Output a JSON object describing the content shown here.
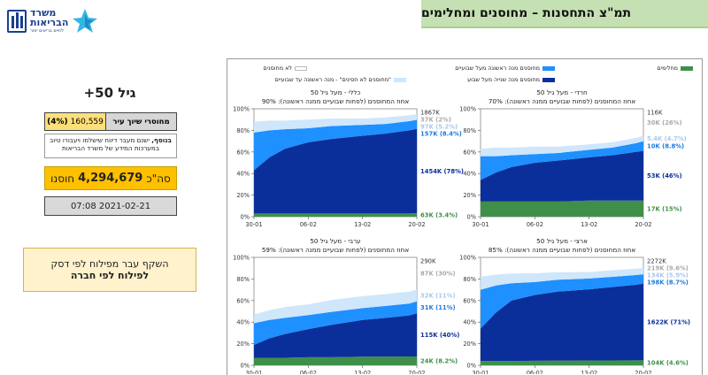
{
  "header": {
    "title": "תמ\"צ התחסנות – מחוסנים ומחלימים",
    "logo": {
      "line1": "משרד",
      "line2": "הבריאות",
      "line3": "לחיים בריאים יותר"
    }
  },
  "info": {
    "age_group": "גיל 50+",
    "residents_label": "מחוסרי שיוך עיר",
    "residents_value": "160,559",
    "residents_pct": "(4%)",
    "note_bold": "בנוסף,",
    "note_text": "ישנם מעבר דיווח שישלמו ויעבורו טיוב במערכות המידע של משרד הבריאות",
    "total_prefix": "סה\"כ",
    "total_value": "4,294,679",
    "total_suffix": "חוסנו",
    "date": "07:08 2021-02-21",
    "shift_line1": "השקף עבר מפילוח לפי דסק",
    "shift_line2": "לפילוח לפי חברה"
  },
  "legend": [
    {
      "label": "מחלימים",
      "color": "#3f8f4a"
    },
    {
      "label": "מחוסנים מנה ראשונה מעל שבועיים",
      "color": "#1e90ff"
    },
    {
      "label": "לא מחוסנים",
      "color": "#ffffff"
    },
    {
      "label": "מחוסנים מנה שנייה מעל שבוע",
      "color": "#0b2f9a"
    },
    {
      "label": "\"מחוסנים לא חסינים\" - מנה ראשונה עד שבועיים",
      "color": "#cfe6fb"
    }
  ],
  "colors": {
    "recovered": "#3f8f4a",
    "second_dose": "#0b2f9a",
    "first_dose": "#1e90ff",
    "not_immune": "#cfe6fb"
  },
  "chart_data": [
    {
      "type": "area",
      "title": "חרדי - מעל גיל 50",
      "subtitle": "אחוז המחוסנים (לפחות שבועיים ממנה ראשונה): 70%",
      "x_ticks": [
        "30-01",
        "06-02",
        "13-02",
        "20-02"
      ],
      "y_ticks": [
        "0%",
        "20%",
        "40%",
        "60%",
        "80%",
        "100%"
      ],
      "ylim": [
        0,
        100
      ],
      "x": [
        0,
        2,
        4,
        7,
        10,
        14,
        17,
        20,
        21
      ],
      "series": [
        {
          "name": "מחלימים",
          "values": [
            14,
            14,
            14,
            14,
            14,
            15,
            15,
            15,
            15
          ]
        },
        {
          "name": "מחוסנים מנה שנייה מעל שבוע",
          "values": [
            20,
            27,
            32,
            36,
            38,
            40,
            42,
            45,
            46
          ]
        },
        {
          "name": "מחוסנים מנה ראשונה מעל שבועיים",
          "values": [
            22,
            15,
            11,
            8,
            7,
            7,
            7,
            8,
            9
          ]
        },
        {
          "name": "\"מחוסנים לא חסינים\" - מנה ראשונה עד שבועיים",
          "values": [
            7,
            8,
            7,
            7,
            6,
            5,
            5,
            5,
            5
          ]
        }
      ],
      "right_labels": [
        {
          "text": "116K",
          "kind": "total"
        },
        {
          "text": "30K (26%)",
          "kind": "unvacc"
        },
        {
          "text": "5.4K (4.7%)",
          "kind": "notimmune"
        },
        {
          "text": "10K (8.8%)",
          "kind": "first"
        },
        {
          "text": "53K (46%)",
          "kind": "second"
        },
        {
          "text": "17K (15%)",
          "kind": "recovered"
        }
      ]
    },
    {
      "type": "area",
      "title": "כללי - מעל גיל 50",
      "subtitle": "אחוז המחוסנים (לפחות שבועיים ממנה ראשונה): 90%",
      "x_ticks": [
        "30-01",
        "06-02",
        "13-02",
        "20-02"
      ],
      "y_ticks": [
        "0%",
        "20%",
        "40%",
        "60%",
        "80%",
        "100%"
      ],
      "ylim": [
        0,
        100
      ],
      "x": [
        0,
        2,
        4,
        7,
        10,
        14,
        17,
        20,
        21
      ],
      "series": [
        {
          "name": "מחלימים",
          "values": [
            3,
            3,
            3,
            3,
            3,
            3,
            3,
            3,
            3.4
          ]
        },
        {
          "name": "מחוסנים מנה שנייה מעל שבוע",
          "values": [
            40,
            52,
            60,
            66,
            69,
            72,
            74,
            77,
            78
          ]
        },
        {
          "name": "מחוסנים מנה ראשונה מעל שבועיים",
          "values": [
            35,
            25,
            18,
            13,
            12,
            10,
            9,
            8.5,
            8.4
          ]
        },
        {
          "name": "\"מחוסנים לא חסינים\" - מנה ראשונה עד שבועיים",
          "values": [
            10,
            9,
            8,
            8,
            7,
            6,
            6,
            5.5,
            5.2
          ]
        }
      ],
      "right_labels": [
        {
          "text": "1867K",
          "kind": "total"
        },
        {
          "text": "37K (2%)",
          "kind": "unvacc"
        },
        {
          "text": "97K (5.2%)",
          "kind": "notimmune"
        },
        {
          "text": "157K (8.4%)",
          "kind": "first"
        },
        {
          "text": "1454K (78%)",
          "kind": "second"
        },
        {
          "text": "63K (3.4%)",
          "kind": "recovered"
        }
      ]
    },
    {
      "type": "area",
      "title": "ארצי - מעל גיל 50",
      "subtitle": "אחוז המחוסנים (לפחות שבועיים ממנה ראשונה): 85%",
      "x_ticks": [
        "30-01",
        "06-02",
        "13-02",
        "20-02"
      ],
      "y_ticks": [
        "0%",
        "20%",
        "40%",
        "60%",
        "80%",
        "100%"
      ],
      "ylim": [
        0,
        100
      ],
      "x": [
        0,
        2,
        4,
        7,
        10,
        14,
        17,
        20,
        21
      ],
      "series": [
        {
          "name": "מחלימים",
          "values": [
            4,
            4,
            4,
            4.2,
            4.3,
            4.4,
            4.5,
            4.6,
            4.6
          ]
        },
        {
          "name": "מחוסנים מנה שנייה מעל שבוע",
          "values": [
            30,
            45,
            56,
            61,
            64,
            66,
            68,
            70,
            71
          ]
        },
        {
          "name": "מחוסנים מנה ראשונה מעל שבועיים",
          "values": [
            36,
            25,
            16,
            12,
            11,
            10,
            9.5,
            9,
            8.7
          ]
        },
        {
          "name": "\"מחוסנים לא חסינים\" - מנה ראשונה עד שבועיים",
          "values": [
            12,
            10,
            9,
            8,
            7,
            6,
            6,
            6,
            5.9
          ]
        }
      ],
      "right_labels": [
        {
          "text": "2272K",
          "kind": "total"
        },
        {
          "text": "219K (9.6%)",
          "kind": "unvacc"
        },
        {
          "text": "134K (5.9%)",
          "kind": "notimmune"
        },
        {
          "text": "198K (8.7%)",
          "kind": "first"
        },
        {
          "text": "1622K (71%)",
          "kind": "second"
        },
        {
          "text": "104K (4.6%)",
          "kind": "recovered"
        }
      ]
    },
    {
      "type": "area",
      "title": "ערבי - מעל גיל 50",
      "subtitle": "אחוז המחוסנים (לפחות שבועיים ממנה ראשונה): 59%",
      "x_ticks": [
        "30-01",
        "06-02",
        "13-02",
        "20-02"
      ],
      "y_ticks": [
        "0%",
        "20%",
        "40%",
        "60%",
        "80%",
        "100%"
      ],
      "ylim": [
        0,
        100
      ],
      "x": [
        0,
        2,
        4,
        7,
        10,
        14,
        17,
        20,
        21
      ],
      "series": [
        {
          "name": "מחלימים",
          "values": [
            7,
            7,
            7,
            7.5,
            7.5,
            8,
            8,
            8.2,
            8.2
          ]
        },
        {
          "name": "מחוסנים מנה שנייה מעל שבוע",
          "values": [
            12,
            18,
            22,
            26,
            30,
            34,
            36,
            38,
            40
          ]
        },
        {
          "name": "מחוסנים מנה ראשונה מעל שבועיים",
          "values": [
            20,
            17,
            15,
            13,
            12,
            11,
            11,
            11,
            11
          ]
        },
        {
          "name": "\"מחוסנים לא חסינים\" - מנה ראשונה עד שבועיים",
          "values": [
            8,
            9,
            10,
            10,
            11,
            11,
            11,
            11,
            11
          ]
        }
      ],
      "right_labels": [
        {
          "text": "290K",
          "kind": "total"
        },
        {
          "text": "87K (30%)",
          "kind": "unvacc"
        },
        {
          "text": "32K (11%)",
          "kind": "notimmune"
        },
        {
          "text": "31K (11%)",
          "kind": "first"
        },
        {
          "text": "115K (40%)",
          "kind": "second"
        },
        {
          "text": "24K (8.2%)",
          "kind": "recovered"
        }
      ]
    }
  ]
}
